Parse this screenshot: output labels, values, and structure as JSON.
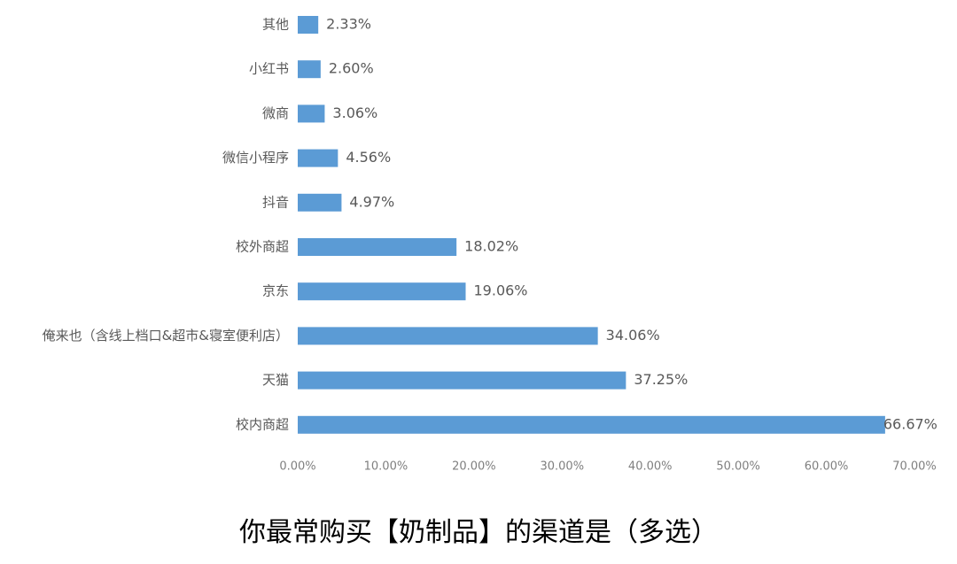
{
  "chart_data": {
    "type": "bar",
    "orientation": "horizontal",
    "title": "你最常购买【奶制品】的渠道是（多选）",
    "categories": [
      "其他",
      "小红书",
      "微商",
      "微信小程序",
      "抖音",
      "校外商超",
      "京东",
      "俺来也（含线上档口&超市&寝室便利店）",
      "天猫",
      "校内商超"
    ],
    "values": [
      2.33,
      2.6,
      3.06,
      4.56,
      4.97,
      18.02,
      19.06,
      34.06,
      37.25,
      66.67
    ],
    "data_labels": [
      "2.33%",
      "2.60%",
      "3.06%",
      "4.56%",
      "4.97%",
      "18.02%",
      "19.06%",
      "34.06%",
      "37.25%",
      "66.67%"
    ],
    "xlim": [
      0,
      70
    ],
    "x_ticks": [
      0,
      10,
      20,
      30,
      40,
      50,
      60,
      70
    ],
    "x_tick_labels": [
      "0.00%",
      "10.00%",
      "20.00%",
      "30.00%",
      "40.00%",
      "50.00%",
      "60.00%",
      "70.00%"
    ],
    "xlabel": "",
    "ylabel": "",
    "grid": false,
    "legend": "none",
    "bar_color": "#5b9bd5"
  }
}
